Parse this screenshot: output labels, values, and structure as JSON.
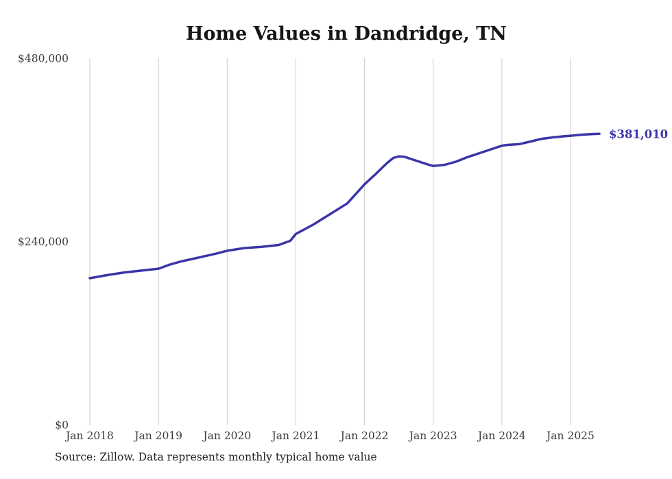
{
  "title": "Home Values in Dandridge, TN",
  "source_note": "Source: Zillow. Data represents monthly typical home value",
  "colors": {
    "line": "#3b35a9",
    "grid": "#cccccc",
    "title_text": "#161616",
    "tick_text": "#3c3c3c",
    "source_text": "#222222",
    "background": "#ffffff"
  },
  "chart_data": {
    "type": "line",
    "title": "Home Values in Dandridge, TN",
    "xlabel": "",
    "ylabel": "",
    "ylim": [
      0,
      480000
    ],
    "grid": "vertical-only",
    "legend_position": "none",
    "yticks": [
      {
        "value": 0,
        "label": "$0"
      },
      {
        "value": 240000,
        "label": "$240,000"
      },
      {
        "value": 480000,
        "label": "$480,000"
      }
    ],
    "xticks": [
      {
        "x": 2018.0,
        "label": "Jan 2018"
      },
      {
        "x": 2019.0,
        "label": "Jan 2019"
      },
      {
        "x": 2020.0,
        "label": "Jan 2020"
      },
      {
        "x": 2021.0,
        "label": "Jan 2021"
      },
      {
        "x": 2022.0,
        "label": "Jan 2022"
      },
      {
        "x": 2023.0,
        "label": "Jan 2023"
      },
      {
        "x": 2024.0,
        "label": "Jan 2024"
      },
      {
        "x": 2025.0,
        "label": "Jan 2025"
      }
    ],
    "series": [
      {
        "name": "Monthly typical home value",
        "color": "#3b35a9",
        "points": [
          [
            2018.0,
            192000
          ],
          [
            2018.25,
            196000
          ],
          [
            2018.5,
            199500
          ],
          [
            2018.75,
            202000
          ],
          [
            2019.0,
            204500
          ],
          [
            2019.17,
            210000
          ],
          [
            2019.33,
            214000
          ],
          [
            2019.58,
            219000
          ],
          [
            2019.83,
            224000
          ],
          [
            2020.0,
            228000
          ],
          [
            2020.25,
            231500
          ],
          [
            2020.5,
            233000
          ],
          [
            2020.75,
            235500
          ],
          [
            2020.92,
            241000
          ],
          [
            2021.0,
            250000
          ],
          [
            2021.25,
            262000
          ],
          [
            2021.5,
            276000
          ],
          [
            2021.75,
            290000
          ],
          [
            2022.0,
            315000
          ],
          [
            2022.17,
            329000
          ],
          [
            2022.33,
            343000
          ],
          [
            2022.42,
            349500
          ],
          [
            2022.5,
            351500
          ],
          [
            2022.58,
            351000
          ],
          [
            2022.75,
            346000
          ],
          [
            2022.92,
            341000
          ],
          [
            2023.0,
            339000
          ],
          [
            2023.17,
            340500
          ],
          [
            2023.33,
            344500
          ],
          [
            2023.5,
            350500
          ],
          [
            2023.75,
            358000
          ],
          [
            2024.0,
            365500
          ],
          [
            2024.08,
            366500
          ],
          [
            2024.25,
            367500
          ],
          [
            2024.42,
            371000
          ],
          [
            2024.58,
            374500
          ],
          [
            2024.75,
            376500
          ],
          [
            2024.92,
            378000
          ],
          [
            2025.0,
            378500
          ],
          [
            2025.17,
            380000
          ],
          [
            2025.33,
            380800
          ],
          [
            2025.42,
            381010
          ]
        ]
      }
    ],
    "annotation": {
      "label": "$381,010",
      "x": 2025.42,
      "y": 381010
    }
  }
}
